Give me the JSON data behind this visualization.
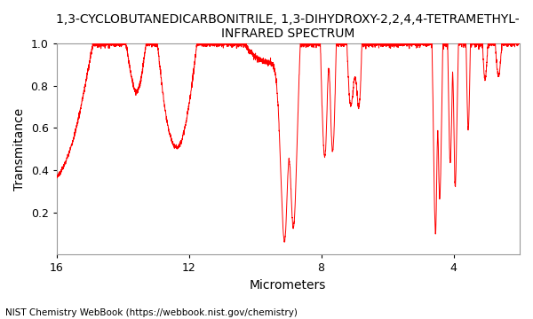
{
  "title_line1": "1,3-CYCLOBUTANEDICARBONITRILE, 1,3-DIHYDROXY-2,2,4,4-TETRAMETHYL-",
  "title_line2": "INFRARED SPECTRUM",
  "xlabel": "Micrometers",
  "ylabel": "Transmitance",
  "footer": "NIST Chemistry WebBook (https://webbook.nist.gov/chemistry)",
  "xlim": [
    16,
    2
  ],
  "ylim": [
    0,
    1
  ],
  "xticks": [
    16,
    12,
    8,
    4
  ],
  "yticks": [
    0.2,
    0.4,
    0.6,
    0.8,
    1.0
  ],
  "line_color": "#ff0000",
  "bg_color": "#ffffff"
}
